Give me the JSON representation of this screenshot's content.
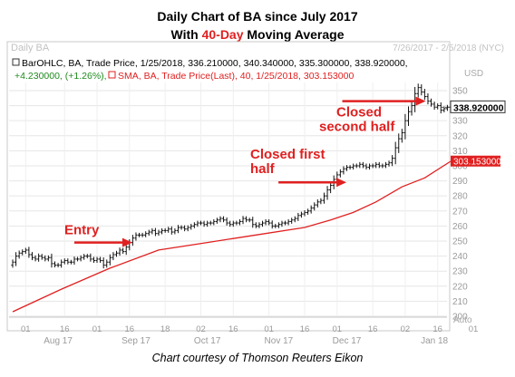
{
  "title": {
    "line1": "Daily Chart of BA since July 2017",
    "line2_prefix": "With ",
    "line2_highlight": "40-Day",
    "line2_suffix": " Moving Average"
  },
  "caption": "Chart courtesy of Thomson Reuters Eikon",
  "colors": {
    "accent": "#e02020",
    "price": "#000000",
    "sma": "#e02020",
    "grid": "#e4e4e4"
  },
  "chart_data": {
    "type": "line",
    "header_left": "Daily BA",
    "header_right": "7/26/2017 - 2/5/2018 (NYC)",
    "legend_line1": "BarOHLC, BA, Trade Price, 1/25/2018, 336.210000, 340.340000, 335.300000, 338.920000,",
    "legend_line2a": "+4.230000, (+1.26%),",
    "legend_line2b": "SMA, BA, Trade Price(Last), 40, 1/25/2018, 303.153000",
    "y_unit": "USD",
    "y_auto": "Auto",
    "ylim": [
      200,
      356
    ],
    "yticks": [
      200,
      210,
      220,
      230,
      240,
      250,
      260,
      270,
      280,
      290,
      300,
      310,
      320,
      330,
      340,
      350
    ],
    "last_price_label": "338.920000",
    "last_price": 338.92,
    "sma_label": "303.153000",
    "sma_last": 303.15,
    "xlim": [
      0,
      135
    ],
    "xticks_days": [
      {
        "t": 4,
        "label": "01"
      },
      {
        "t": 16,
        "label": "16"
      },
      {
        "t": 26,
        "label": "01"
      },
      {
        "t": 36,
        "label": "16"
      },
      {
        "t": 47,
        "label": "18"
      },
      {
        "t": 58,
        "label": "02"
      },
      {
        "t": 68,
        "label": "16"
      },
      {
        "t": 79,
        "label": "01"
      },
      {
        "t": 90,
        "label": "16"
      },
      {
        "t": 100,
        "label": "01"
      },
      {
        "t": 111,
        "label": "16"
      },
      {
        "t": 121,
        "label": "02"
      },
      {
        "t": 131,
        "label": "16"
      },
      {
        "t": 142,
        "label": "01"
      }
    ],
    "xticks_months": [
      {
        "t": 14,
        "label": "Aug 17"
      },
      {
        "t": 38,
        "label": "Sep 17"
      },
      {
        "t": 60,
        "label": "Oct 17"
      },
      {
        "t": 82,
        "label": "Nov 17"
      },
      {
        "t": 103,
        "label": "Dec 17"
      },
      {
        "t": 130,
        "label": "Jan 18"
      }
    ],
    "series": [
      {
        "kind": "ohlc",
        "x": [
          0,
          1,
          2,
          3,
          4,
          5,
          6,
          7,
          8,
          9,
          10,
          11,
          12,
          13,
          14,
          15,
          16,
          17,
          18,
          19,
          20,
          21,
          22,
          23,
          24,
          25,
          26,
          27,
          28,
          29,
          30,
          31,
          32,
          33,
          34,
          35,
          36,
          37,
          38,
          39,
          40,
          41,
          42,
          43,
          44,
          45,
          46,
          47,
          48,
          49,
          50,
          51,
          52,
          53,
          54,
          55,
          56,
          57,
          58,
          59,
          60,
          61,
          62,
          63,
          64,
          65,
          66,
          67,
          68,
          69,
          70,
          71,
          72,
          73,
          74,
          75,
          76,
          77,
          78,
          79,
          80,
          81,
          82,
          83,
          84,
          85,
          86,
          87,
          88,
          89,
          90,
          91,
          92,
          93,
          94,
          95,
          96,
          97,
          98,
          99,
          100,
          101,
          102,
          103,
          104,
          105,
          106,
          107,
          108,
          109,
          110,
          111,
          112,
          113,
          114,
          115,
          116,
          117,
          118,
          119,
          120,
          121,
          122,
          123,
          124,
          125,
          126,
          127,
          128,
          129,
          130,
          131,
          132,
          133,
          134,
          135
        ],
        "close": [
          236,
          240,
          242,
          243,
          244,
          241,
          239,
          238,
          240,
          239,
          238,
          239,
          235,
          234,
          234,
          236,
          237,
          236,
          236,
          238,
          238,
          239,
          240,
          240,
          238,
          237,
          238,
          237,
          234,
          236,
          239,
          241,
          242,
          244,
          243,
          246,
          249,
          252,
          254,
          254,
          254,
          255,
          256,
          257,
          255,
          256,
          257,
          257,
          258,
          256,
          257,
          259,
          259,
          258,
          259,
          260,
          261,
          262,
          262,
          261,
          262,
          262,
          263,
          264,
          265,
          264,
          262,
          261,
          262,
          262,
          263,
          265,
          264,
          264,
          261,
          260,
          261,
          262,
          263,
          262,
          260,
          260,
          261,
          262,
          262,
          263,
          264,
          265,
          267,
          268,
          269,
          270,
          272,
          274,
          276,
          277,
          280,
          284,
          287,
          291,
          294,
          296,
          298,
          299,
          299,
          300,
          300,
          301,
          300,
          299,
          300,
          300,
          301,
          300,
          300,
          301,
          302,
          305,
          312,
          318,
          322,
          330,
          336,
          340,
          348,
          352,
          349,
          346,
          343,
          341,
          339,
          340,
          337,
          338,
          339,
          339
        ]
      },
      {
        "name": "SMA 40",
        "x": [
          0,
          15,
          30,
          45,
          60,
          75,
          90,
          98,
          105,
          112,
          120,
          127,
          135
        ],
        "values": [
          203,
          218,
          232,
          244,
          249,
          254,
          259,
          264,
          269,
          276,
          286,
          292,
          303
        ]
      }
    ],
    "annotations": [
      {
        "text": "Entry",
        "t": 38,
        "y": 249
      },
      {
        "text": "Closed first",
        "text2": "half",
        "t": 104,
        "y": 289
      },
      {
        "text": "Closed",
        "text2": "second half",
        "t": 129,
        "y": 343
      }
    ]
  }
}
